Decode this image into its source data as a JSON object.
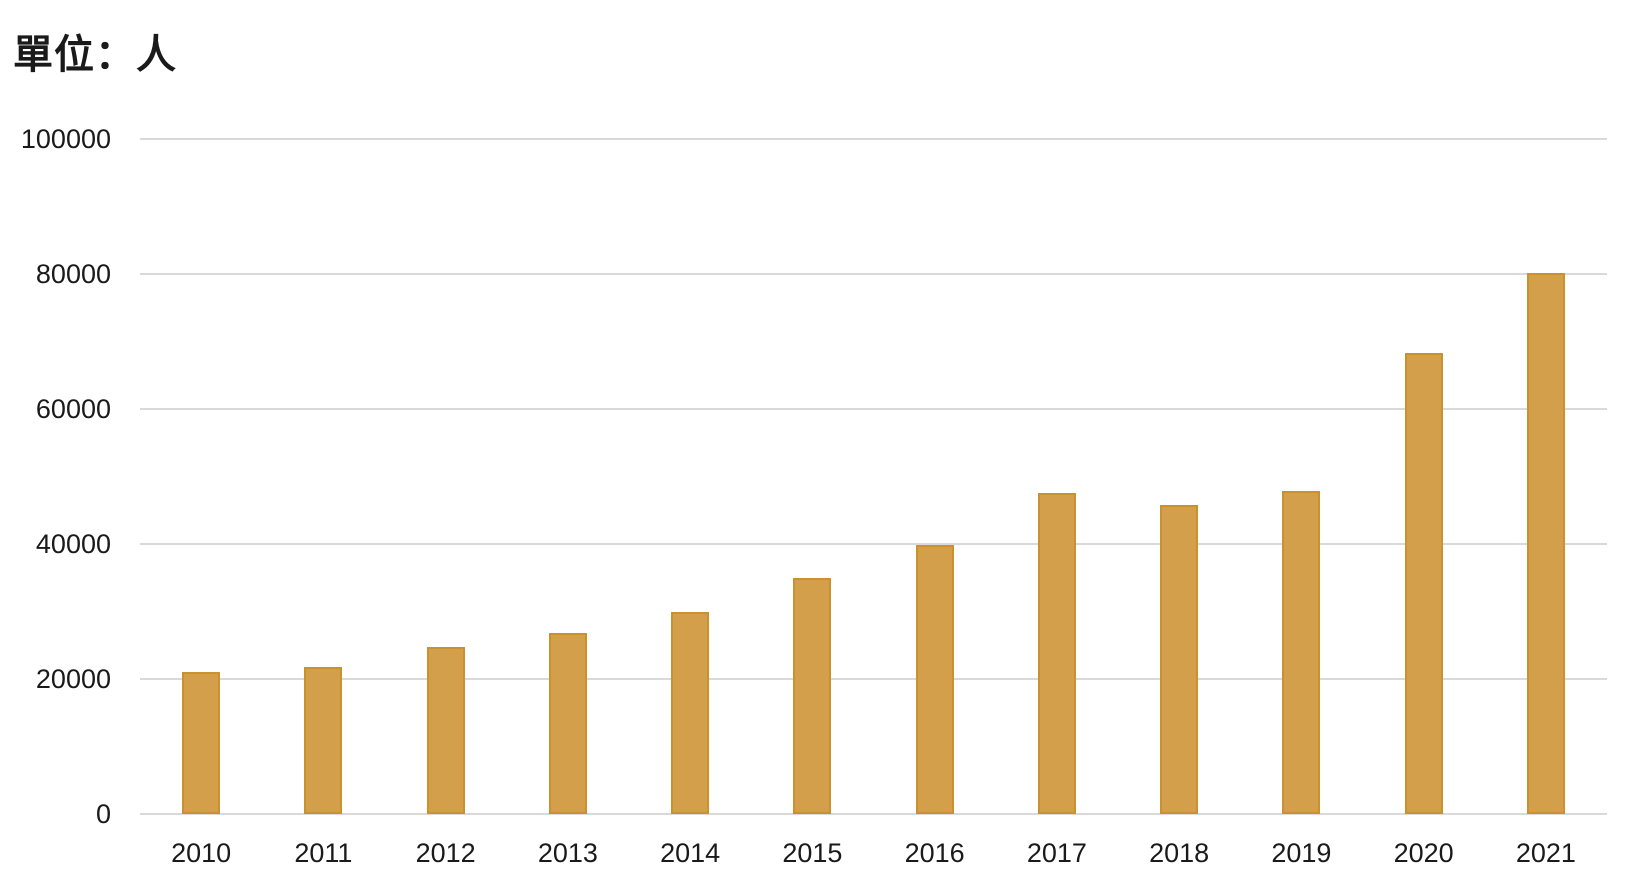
{
  "title": {
    "unit_label": "單位：人"
  },
  "colors": {
    "background": "#FFFFFF",
    "bar_fill": "#D39F4A",
    "bar_border": "#C9922F",
    "gridline": "#D9D9D9",
    "axis_line": "#D9D9D9",
    "label_text": "#1A1A1A"
  },
  "chart_data": {
    "type": "bar",
    "title": "單位：人",
    "unit": "人",
    "xlabel": "",
    "ylabel": "",
    "categories": [
      "2010",
      "2011",
      "2012",
      "2013",
      "2014",
      "2015",
      "2016",
      "2017",
      "2018",
      "2019",
      "2020",
      "2021"
    ],
    "values": [
      21000,
      21800,
      24700,
      26800,
      29900,
      34900,
      39900,
      47500,
      45800,
      47800,
      68300,
      80200
    ],
    "ylim": [
      0,
      100000
    ],
    "yticks": [
      0,
      20000,
      40000,
      60000,
      80000,
      100000
    ],
    "ytick_labels": [
      "0",
      "20000",
      "40000",
      "60000",
      "80000",
      "100000"
    ],
    "grid": true,
    "legend": false
  }
}
